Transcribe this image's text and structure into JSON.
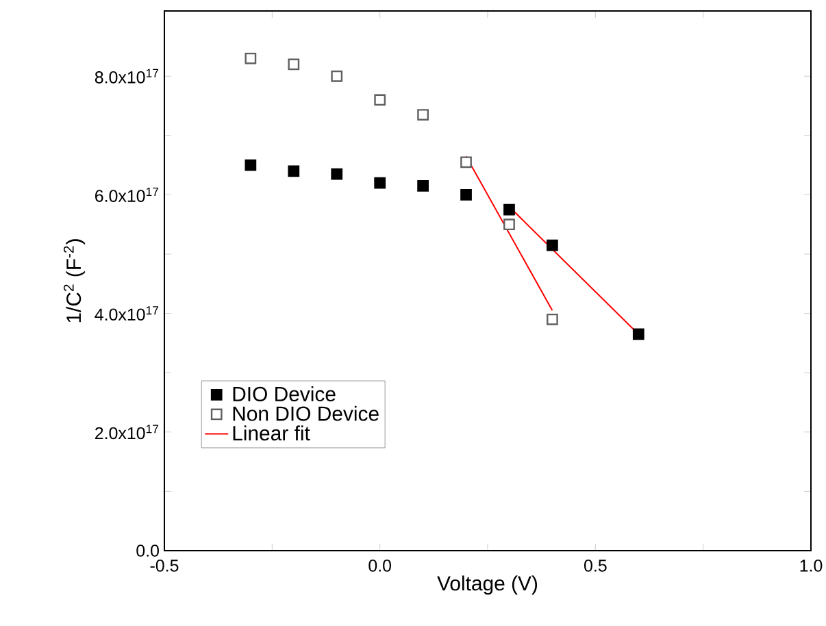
{
  "chart_data": {
    "type": "scatter",
    "xlabel": "Voltage (V)",
    "ylabel": "1/C$^{2}$ (F$^{-2}$)",
    "xlim": [
      -0.5,
      1.0
    ],
    "xticks": [
      {
        "value": -0.5,
        "label": "-0.5"
      },
      {
        "value": -0.25,
        "label": null
      },
      {
        "value": 0.0,
        "label": "0.0"
      },
      {
        "value": 0.25,
        "label": null
      },
      {
        "value": 0.5,
        "label": "0.5"
      },
      {
        "value": 0.75,
        "label": null
      },
      {
        "value": 1.0,
        "label": "1.0"
      }
    ],
    "ylim": [
      0,
      9.1e+17
    ],
    "yticks": [
      {
        "value": 0,
        "label": "0.0"
      },
      {
        "value": 1e+17,
        "label": null
      },
      {
        "value": 2e+17,
        "label": "2.0x10$^{17}$"
      },
      {
        "value": 3e+17,
        "label": null
      },
      {
        "value": 4e+17,
        "label": "4.0x10$^{17}$"
      },
      {
        "value": 5e+17,
        "label": null
      },
      {
        "value": 6e+17,
        "label": "6.0x10$^{17}$"
      },
      {
        "value": 7e+17,
        "label": null
      },
      {
        "value": 8e+17,
        "label": "8.0x10$^{17}$"
      }
    ],
    "grid": false,
    "legend": "bottom left",
    "series": [
      {
        "name": "DIO Device",
        "marker": "square",
        "color": "#000000",
        "x": [
          -0.3,
          -0.2,
          -0.1,
          0.0,
          0.1,
          0.2,
          0.3,
          0.4,
          0.6
        ],
        "values": [
          6.5e+17,
          6.4e+17,
          6.35e+17,
          6.2e+17,
          6.15e+17,
          6e+17,
          5.75e+17,
          5.15e+17,
          3.65e+17
        ]
      },
      {
        "name": "Non DIO Device",
        "marker": "square",
        "color": "#606060",
        "x": [
          -0.3,
          -0.2,
          -0.1,
          0.0,
          0.1,
          0.2,
          0.3,
          0.4
        ],
        "values": [
          8.3e+17,
          8.2e+17,
          8e+17,
          7.6e+17,
          7.35e+17,
          6.55e+17,
          5.5e+17,
          3.9e+17
        ]
      },
      {
        "name": "Linear fit",
        "type": "line",
        "marker": "none",
        "color": "#ff0000",
        "x": [
          0.3,
          0.6
        ],
        "values": [
          5.8e+17,
          3.65e+17
        ]
      },
      {
        "type": "line",
        "marker": "none",
        "color": "#ff0000",
        "x": [
          0.2,
          0.4
        ],
        "values": [
          6.65e+17,
          4.05e+17
        ]
      }
    ]
  }
}
